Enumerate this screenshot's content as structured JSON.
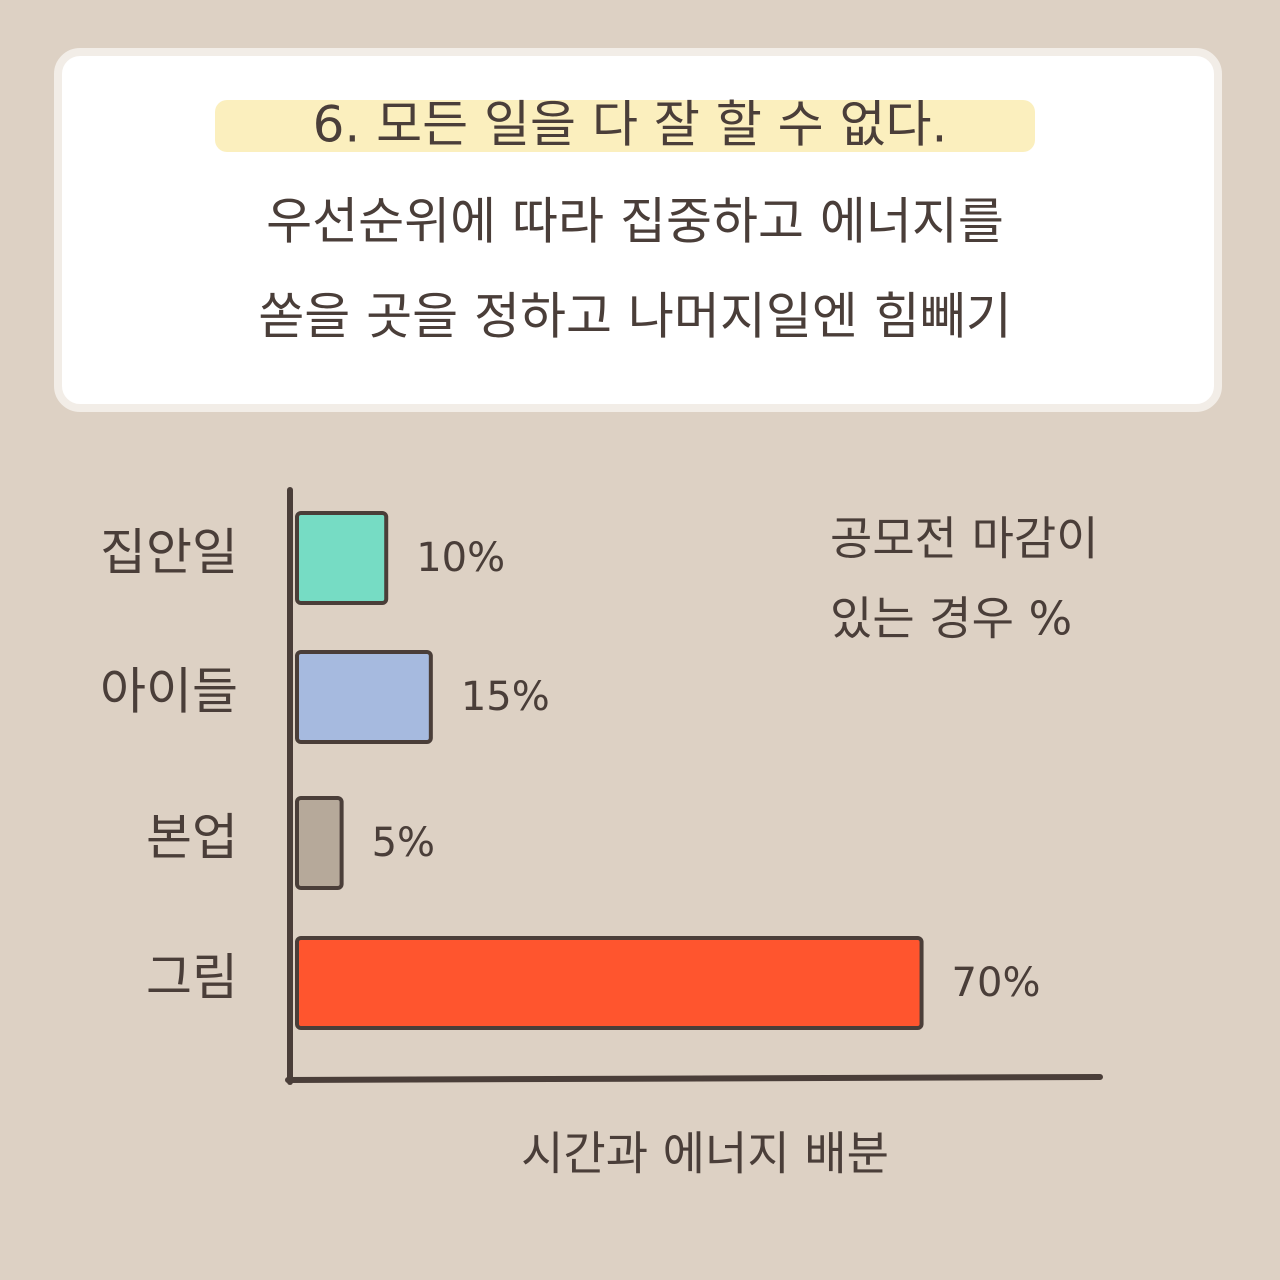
{
  "chart_data": {
    "type": "bar",
    "orientation": "horizontal",
    "title": "6. 모든 일을 다 잘 할 수 없다.",
    "subtitle": [
      "우선순위에 따라 집중하고 에너지를",
      "쏟을 곳을 정하고 나머지일엔 힘빼기"
    ],
    "annotation": [
      "공모전 마감이",
      "있는 경우 %"
    ],
    "x_label": "시간과 에너지 배분",
    "categories": [
      "집안일",
      "아이들",
      "본업",
      "그림"
    ],
    "values": [
      10,
      15,
      5,
      70
    ],
    "value_labels": [
      "10%",
      "15%",
      "5%",
      "70%"
    ],
    "colors": [
      "#76dcc4",
      "#a6badf",
      "#b6a99a",
      "#ff552e"
    ],
    "xlim": [
      0,
      90
    ]
  }
}
